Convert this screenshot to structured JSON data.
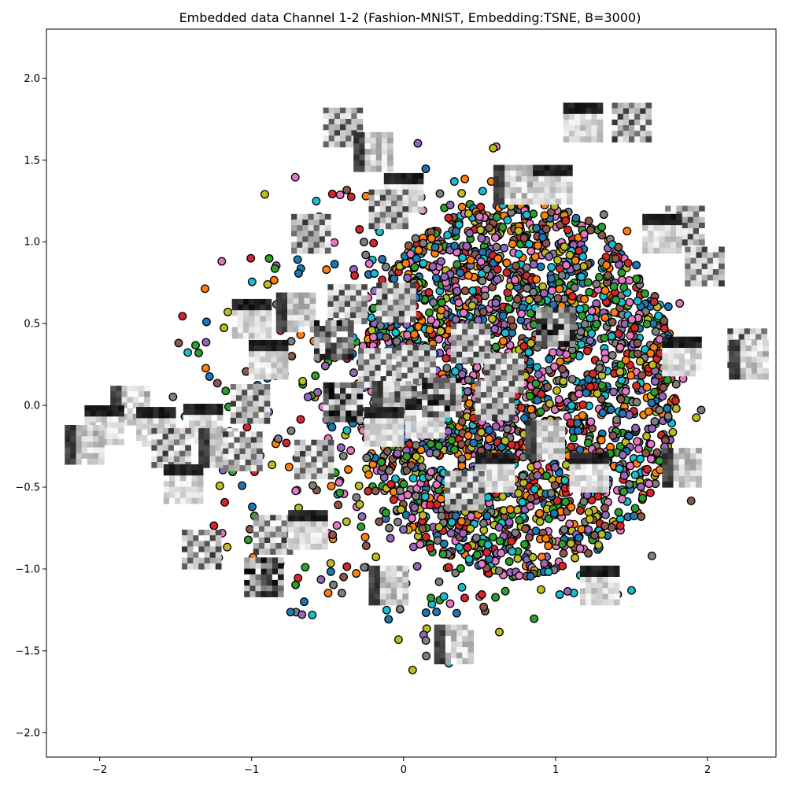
{
  "chart_data": {
    "type": "scatter",
    "title": "Embedded data Channel 1-2 (Fashion-MNIST, Embedding:TSNE, B=3000)",
    "xlabel": "",
    "ylabel": "",
    "xlim": [
      -2.35,
      2.45
    ],
    "ylim": [
      -2.15,
      2.3
    ],
    "xticks": [
      -2,
      -1,
      0,
      1,
      2
    ],
    "xtick_labels": [
      "−2",
      "−1",
      "0",
      "1",
      "2"
    ],
    "yticks": [
      -2.0,
      -1.5,
      -1.0,
      -0.5,
      0.0,
      0.5,
      1.0,
      1.5,
      2.0
    ],
    "ytick_labels": [
      "−2.0",
      "−1.5",
      "−1.0",
      "−0.5",
      "0.0",
      "0.5",
      "1.0",
      "1.5",
      "2.0"
    ],
    "grid": false,
    "legend": "none",
    "point_count": 3000,
    "point_colors": [
      "#1f77b4",
      "#ff7f0e",
      "#2ca02c",
      "#d62728",
      "#9467bd",
      "#8c564b",
      "#e377c2",
      "#7f7f7f",
      "#bcbd22",
      "#17becf"
    ],
    "marker_edge_color": "#000000",
    "cloud": {
      "core_center": [
        0.75,
        0.1
      ],
      "core_radius": [
        1.05,
        1.15
      ],
      "halo_center": [
        0.2,
        0.0
      ],
      "halo_radius": [
        1.85,
        1.65
      ]
    },
    "thumbnails": [
      [
        -0.4,
        1.7
      ],
      [
        -0.2,
        1.55
      ],
      [
        0.0,
        1.3
      ],
      [
        -0.1,
        1.2
      ],
      [
        0.72,
        1.35
      ],
      [
        0.98,
        1.35
      ],
      [
        1.18,
        1.73
      ],
      [
        1.5,
        1.73
      ],
      [
        1.85,
        1.1
      ],
      [
        1.7,
        1.05
      ],
      [
        1.98,
        0.85
      ],
      [
        -0.61,
        1.05
      ],
      [
        -1.0,
        0.53
      ],
      [
        -0.71,
        0.57
      ],
      [
        -0.37,
        0.62
      ],
      [
        -0.46,
        0.4
      ],
      [
        -0.05,
        0.63
      ],
      [
        -0.89,
        0.28
      ],
      [
        -0.17,
        0.23
      ],
      [
        0.08,
        0.25
      ],
      [
        0.44,
        0.38
      ],
      [
        0.66,
        0.2
      ],
      [
        1.0,
        0.48
      ],
      [
        1.83,
        0.3
      ],
      [
        2.26,
        0.35
      ],
      [
        2.27,
        0.28
      ],
      [
        -1.8,
        0.0
      ],
      [
        -1.97,
        -0.12
      ],
      [
        -2.1,
        -0.24
      ],
      [
        -1.63,
        -0.13
      ],
      [
        -1.32,
        -0.11
      ],
      [
        -1.01,
        0.01
      ],
      [
        -1.53,
        -0.26
      ],
      [
        -1.22,
        -0.26
      ],
      [
        -1.06,
        -0.28
      ],
      [
        -0.4,
        0.02
      ],
      [
        -0.08,
        0.03
      ],
      [
        0.07,
        0.0
      ],
      [
        0.14,
        -0.08
      ],
      [
        0.25,
        0.05
      ],
      [
        -0.13,
        -0.13
      ],
      [
        0.6,
        0.03
      ],
      [
        -0.59,
        -0.33
      ],
      [
        0.93,
        -0.21
      ],
      [
        0.6,
        -0.41
      ],
      [
        0.4,
        -0.52
      ],
      [
        1.22,
        -0.41
      ],
      [
        1.83,
        -0.38
      ],
      [
        -1.45,
        -0.48
      ],
      [
        -1.33,
        -0.88
      ],
      [
        -0.86,
        -0.79
      ],
      [
        -0.63,
        -0.76
      ],
      [
        -0.92,
        -1.05
      ],
      [
        -0.1,
        -1.1
      ],
      [
        1.29,
        -1.1
      ],
      [
        0.33,
        -1.46
      ]
    ]
  }
}
